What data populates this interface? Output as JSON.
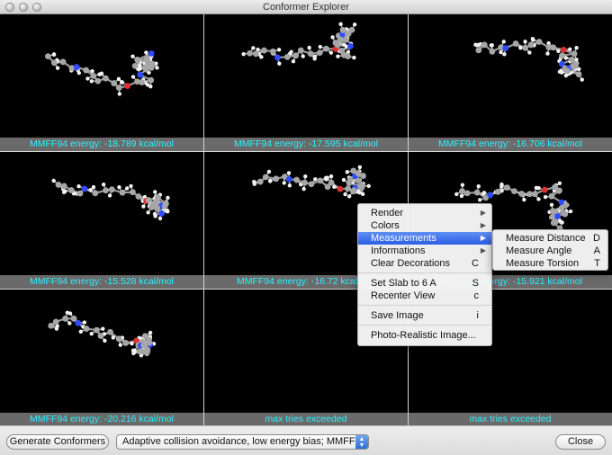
{
  "window": {
    "title": "Conformer Explorer"
  },
  "conformers": [
    {
      "caption": "MMFF94 energy: -18.789 kcal/mol",
      "has_molecule": true
    },
    {
      "caption": "MMFF94 energy: -17.595 kcal/mol",
      "has_molecule": true
    },
    {
      "caption": "MMFF94 energy: -16.706 kcal/mol",
      "has_molecule": true
    },
    {
      "caption": "MMFF94 energy: -15.528 kcal/mol",
      "has_molecule": true
    },
    {
      "caption": "MMFF94 energy: -16.72 kcal/mol",
      "has_molecule": true
    },
    {
      "caption": "MMFF94 energy: -15.921 kcal/mol",
      "has_molecule": true
    },
    {
      "caption": "MMFF94 energy: -20.216 kcal/mol",
      "has_molecule": true
    },
    {
      "caption": "max tries exceeded",
      "has_molecule": false
    },
    {
      "caption": "max tries exceeded",
      "has_molecule": false
    }
  ],
  "context_menu": {
    "items": [
      {
        "label": "Render",
        "shortcut": "",
        "submenu": true,
        "highlighted": false
      },
      {
        "label": "Colors",
        "shortcut": "",
        "submenu": true,
        "highlighted": false
      },
      {
        "label": "Measurements",
        "shortcut": "",
        "submenu": true,
        "highlighted": true
      },
      {
        "label": "Informations",
        "shortcut": "",
        "submenu": true,
        "highlighted": false
      },
      {
        "label": "Clear Decorations",
        "shortcut": "C",
        "submenu": false,
        "highlighted": false
      },
      {
        "label": "Set Slab to 6 A",
        "shortcut": "S",
        "submenu": false,
        "highlighted": false
      },
      {
        "label": "Recenter View",
        "shortcut": "c",
        "submenu": false,
        "highlighted": false
      },
      {
        "label": "Save Image",
        "shortcut": "i",
        "submenu": false,
        "highlighted": false
      },
      {
        "label": "Photo-Realistic Image...",
        "shortcut": "",
        "submenu": false,
        "highlighted": false
      }
    ]
  },
  "measurements_submenu": {
    "items": [
      {
        "label": "Measure Distance",
        "shortcut": "D"
      },
      {
        "label": "Measure Angle",
        "shortcut": "A"
      },
      {
        "label": "Measure Torsion",
        "shortcut": "T"
      }
    ]
  },
  "bottom_bar": {
    "generate_label": "Generate Conformers",
    "algorithm_value": "Adaptive collision avoidance, low energy bias; MMFF94",
    "close_label": "Close"
  },
  "colors": {
    "caption_text": "#2ff0ff",
    "caption_bg": "#6a6a6a",
    "menu_highlight": "#3d6ff0",
    "view_bg": "#000000"
  }
}
